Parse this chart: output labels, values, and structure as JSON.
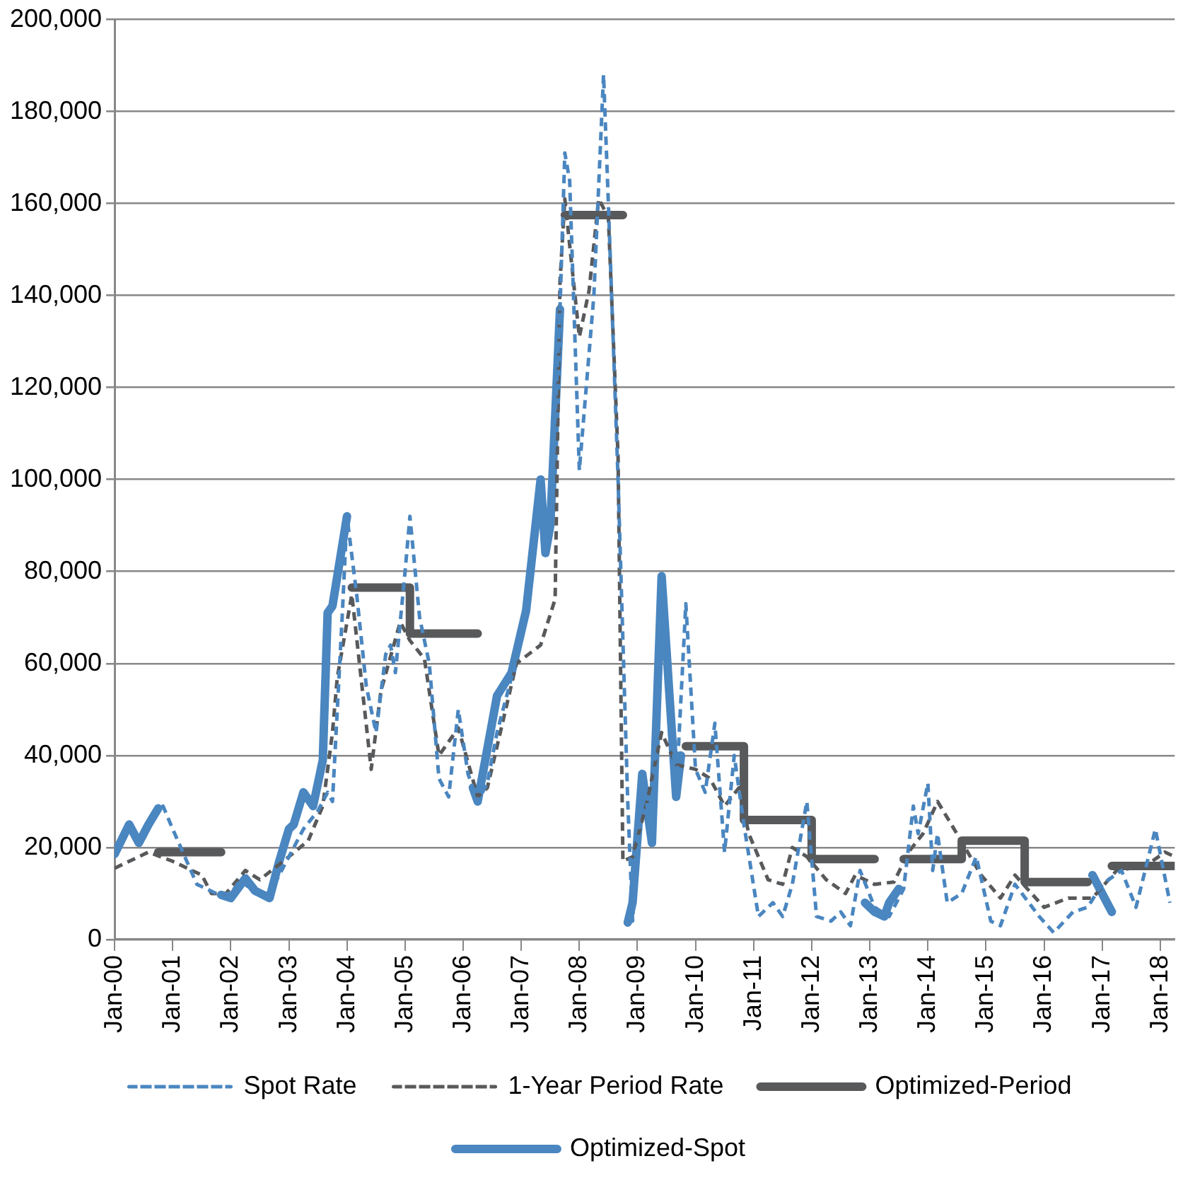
{
  "chart_data": {
    "type": "line",
    "xlim": [
      "2000-01",
      "2018-04"
    ],
    "xticks": [
      {
        "value": "2000-01",
        "label": "Jan-00"
      },
      {
        "value": "2001-01",
        "label": "Jan-01"
      },
      {
        "value": "2002-01",
        "label": "Jan-02"
      },
      {
        "value": "2003-01",
        "label": "Jan-03"
      },
      {
        "value": "2004-01",
        "label": "Jan-04"
      },
      {
        "value": "2005-01",
        "label": "Jan-05"
      },
      {
        "value": "2006-01",
        "label": "Jan-06"
      },
      {
        "value": "2007-01",
        "label": "Jan-07"
      },
      {
        "value": "2008-01",
        "label": "Jan-08"
      },
      {
        "value": "2009-01",
        "label": "Jan-09"
      },
      {
        "value": "2010-01",
        "label": "Jan-10"
      },
      {
        "value": "2011-01",
        "label": "Jan-11"
      },
      {
        "value": "2012-01",
        "label": "Jan-12"
      },
      {
        "value": "2013-01",
        "label": "Jan-13"
      },
      {
        "value": "2014-01",
        "label": "Jan-14"
      },
      {
        "value": "2015-01",
        "label": "Jan-15"
      },
      {
        "value": "2016-01",
        "label": "Jan-16"
      },
      {
        "value": "2017-01",
        "label": "Jan-17"
      },
      {
        "value": "2018-01",
        "label": "Jan-18"
      }
    ],
    "ylim": [
      0,
      200000
    ],
    "yticks": [
      {
        "value": 0,
        "label": "0"
      },
      {
        "value": 20000,
        "label": "20,000"
      },
      {
        "value": 40000,
        "label": "40,000"
      },
      {
        "value": 60000,
        "label": "60,000"
      },
      {
        "value": 80000,
        "label": "80,000"
      },
      {
        "value": 100000,
        "label": "100,000"
      },
      {
        "value": 120000,
        "label": "120,000"
      },
      {
        "value": 140000,
        "label": "140,000"
      },
      {
        "value": 160000,
        "label": "160,000"
      },
      {
        "value": 180000,
        "label": "180,000"
      },
      {
        "value": 200000,
        "label": "200,000"
      }
    ],
    "grid": "y",
    "legend": "bottom",
    "marker": "none",
    "series": [
      {
        "name": "Spot Rate",
        "color": "#4a86c0",
        "line_style": "dashed",
        "x": [
          "2000-01",
          "2000-04",
          "2000-06",
          "2000-08",
          "2000-11",
          "2001-01",
          "2001-06",
          "2001-10",
          "2002-01",
          "2002-03",
          "2002-06",
          "2002-09",
          "2003-01",
          "2003-04",
          "2003-07",
          "2003-09",
          "2003-10",
          "2003-12",
          "2004-01",
          "2004-03",
          "2004-05",
          "2004-07",
          "2004-09",
          "2004-10",
          "2004-11",
          "2005-01",
          "2005-02",
          "2005-04",
          "2005-06",
          "2005-08",
          "2005-10",
          "2005-12",
          "2006-02",
          "2006-04",
          "2006-06",
          "2006-08",
          "2006-11",
          "2007-02",
          "2007-05",
          "2007-06",
          "2007-07",
          "2007-09",
          "2007-10",
          "2007-11",
          "2008-01",
          "2008-04",
          "2008-06",
          "2008-07",
          "2008-09",
          "2008-11",
          "2008-12",
          "2009-02",
          "2009-04",
          "2009-06",
          "2009-09",
          "2009-11",
          "2010-01",
          "2010-03",
          "2010-05",
          "2010-07",
          "2010-09",
          "2010-11",
          "2011-02",
          "2011-05",
          "2011-07",
          "2011-09",
          "2011-12",
          "2012-02",
          "2012-05",
          "2012-07",
          "2012-09",
          "2012-11",
          "2013-02",
          "2013-05",
          "2013-08",
          "2013-10",
          "2013-11",
          "2014-01",
          "2014-02",
          "2014-03",
          "2014-05",
          "2014-08",
          "2014-11",
          "2015-02",
          "2015-04",
          "2015-07",
          "2015-12",
          "2016-03",
          "2016-07",
          "2016-10",
          "2017-01",
          "2017-05",
          "2017-08",
          "2017-12",
          "2018-03"
        ],
        "values": [
          18000,
          25000,
          21000,
          25000,
          29000,
          24000,
          12000,
          10000,
          10000,
          13000,
          10000,
          10000,
          18000,
          24000,
          28000,
          32000,
          30000,
          70000,
          92000,
          75000,
          55000,
          45000,
          62000,
          64000,
          58000,
          80000,
          92000,
          70000,
          60000,
          35000,
          31000,
          50000,
          36000,
          30000,
          34000,
          45000,
          57000,
          70000,
          100000,
          84000,
          90000,
          137000,
          171000,
          165000,
          102000,
          140000,
          188000,
          160000,
          100000,
          30000,
          4000,
          36000,
          22000,
          78000,
          32000,
          73000,
          37000,
          32000,
          47000,
          19000,
          40000,
          25000,
          5000,
          8000,
          5000,
          12000,
          30000,
          5000,
          4000,
          6000,
          3000,
          15000,
          7000,
          5000,
          11000,
          29000,
          23000,
          34000,
          15000,
          23000,
          8000,
          10000,
          18000,
          4000,
          3000,
          12000,
          5000,
          1500,
          6000,
          7000,
          12000,
          15000,
          7000,
          24000,
          8000
        ]
      },
      {
        "name": "1-Year Period Rate",
        "color": "#58595b",
        "line_style": "dashed",
        "x": [
          "2000-01",
          "2000-08",
          "2001-01",
          "2001-07",
          "2001-09",
          "2001-12",
          "2002-04",
          "2002-07",
          "2003-01",
          "2003-05",
          "2003-08",
          "2003-10",
          "2003-11",
          "2004-02",
          "2004-06",
          "2004-08",
          "2004-12",
          "2005-02",
          "2005-05",
          "2005-08",
          "2005-12",
          "2006-04",
          "2006-06",
          "2006-12",
          "2007-05",
          "2007-08",
          "2007-09",
          "2007-10",
          "2008-01",
          "2008-03",
          "2008-05",
          "2008-07",
          "2008-09",
          "2008-10",
          "2008-12",
          "2009-03",
          "2009-06",
          "2009-09",
          "2010-01",
          "2010-04",
          "2010-07",
          "2010-10",
          "2010-12",
          "2011-04",
          "2011-07",
          "2011-09",
          "2011-12",
          "2012-04",
          "2012-08",
          "2012-10",
          "2013-02",
          "2013-06",
          "2013-09",
          "2013-12",
          "2014-03",
          "2014-07",
          "2014-12",
          "2015-04",
          "2015-07",
          "2016-01",
          "2016-06",
          "2016-11",
          "2017-04",
          "2017-10",
          "2018-02",
          "2018-04"
        ],
        "values": [
          15500,
          19000,
          17000,
          14000,
          10000,
          10000,
          15000,
          13000,
          18000,
          21500,
          29000,
          45000,
          57000,
          75000,
          37000,
          54000,
          69000,
          65000,
          61000,
          40000,
          46000,
          31000,
          33000,
          60000,
          64000,
          74000,
          143000,
          161000,
          131000,
          141000,
          161000,
          157000,
          105000,
          17000,
          18000,
          30000,
          45000,
          38000,
          37000,
          35000,
          29000,
          33000,
          23000,
          13000,
          12000,
          20000,
          18000,
          13000,
          10000,
          14000,
          12000,
          12500,
          19000,
          23000,
          30000,
          23000,
          14000,
          9000,
          14000,
          7000,
          9000,
          9000,
          15000,
          16000,
          19000,
          18000
        ]
      },
      {
        "name": "Optimized-Period",
        "color": "#58595b",
        "line_style": "solid",
        "x": [
          "2000-10",
          "2001-11",
          "2002-01",
          "2004-02",
          "2005-02",
          "2005-02",
          "2006-04",
          "2007-01",
          "2007-10",
          "2008-10",
          "2009-01",
          "2009-11",
          "2010-11",
          "2010-11",
          "2012-01",
          "2012-01",
          "2013-02",
          "2013-05",
          "2013-08",
          "2014-08",
          "2014-08",
          "2015-09",
          "2015-09",
          "2016-10",
          "2016-12",
          "2017-03",
          "2018-04"
        ],
        "values": [
          19000,
          19000,
          null,
          76500,
          76500,
          66500,
          66500,
          null,
          157500,
          157500,
          null,
          42000,
          42000,
          26000,
          26000,
          17500,
          17500,
          null,
          17500,
          17500,
          21500,
          21500,
          12500,
          12500,
          null,
          16000,
          16000
        ]
      },
      {
        "name": "Optimized-Spot",
        "color": "#4a86c0",
        "line_style": "solid",
        "x": [
          "2000-01",
          "2000-04",
          "2000-06",
          "2000-08",
          "2000-10",
          "2001-01",
          "2001-11",
          "2002-01",
          "2002-04",
          "2002-06",
          "2002-09",
          "2002-11",
          "2003-01",
          "2003-02",
          "2003-04",
          "2003-06",
          "2003-08",
          "2003-09",
          "2003-10",
          "2004-01",
          "2004-03",
          "2006-03",
          "2006-04",
          "2006-08",
          "2006-11",
          "2007-02",
          "2007-05",
          "2007-06",
          "2007-07",
          "2007-09",
          "2008-01",
          "2008-11",
          "2008-12",
          "2009-02",
          "2009-04",
          "2009-06",
          "2009-09",
          "2009-10",
          "2010-01",
          "2012-12",
          "2013-02",
          "2013-04",
          "2013-05",
          "2013-07",
          "2014-01",
          "2016-11",
          "2017-01",
          "2017-03"
        ],
        "values": [
          18600,
          25000,
          21000,
          25000,
          28500,
          null,
          9700,
          9000,
          13300,
          10600,
          9000,
          17000,
          24000,
          25000,
          32000,
          29000,
          39000,
          71000,
          72500,
          92000,
          null,
          33000,
          30000,
          53000,
          58000,
          71500,
          100000,
          84000,
          90000,
          137000,
          null,
          3700,
          8000,
          36000,
          21000,
          79000,
          31000,
          40000,
          null,
          8000,
          6000,
          5000,
          8000,
          11000,
          null,
          14000,
          10000,
          6000
        ]
      }
    ]
  }
}
